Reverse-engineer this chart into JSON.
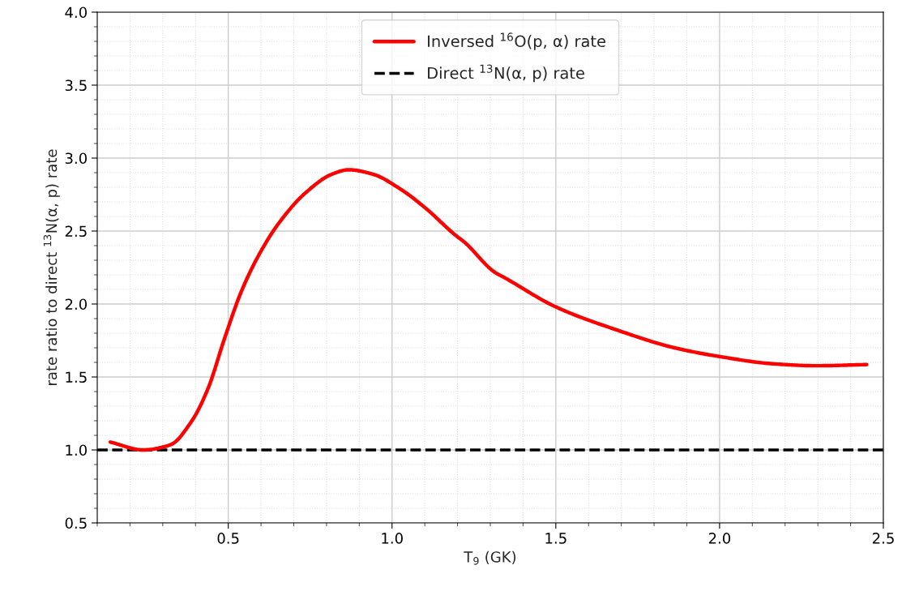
{
  "chart_data": {
    "type": "line",
    "xlabel": "T$_{9}$ (GK)",
    "ylabel": "rate ratio to direct $^{13}$N(α, p) rate",
    "series": [
      {
        "name": "Inversed $^{16}$O(p, α) rate",
        "color": "#ff0000",
        "line_style": "solid",
        "x": [
          0.14,
          0.24,
          0.323,
          0.389,
          0.438,
          0.488,
          0.537,
          0.587,
          0.653,
          0.735,
          0.817,
          0.867,
          0.941,
          1.024,
          1.106,
          1.189,
          1.223,
          1.312,
          1.344,
          1.5,
          1.689,
          1.862,
          2.0,
          2.164,
          2.294,
          2.449
        ],
        "values": [
          1.054,
          1.0,
          1.035,
          1.2,
          1.42,
          1.76,
          2.07,
          2.31,
          2.55,
          2.76,
          2.89,
          2.92,
          2.89,
          2.79,
          2.65,
          2.48,
          2.42,
          2.22,
          2.18,
          1.98,
          1.82,
          1.7,
          1.64,
          1.59,
          1.577,
          1.585
        ]
      }
    ],
    "ref_lines": [
      {
        "axis": "y",
        "value": 1.0,
        "label": "Direct $^{13}$N(α, p) rate",
        "color": "#000000",
        "line_style": "dashed"
      }
    ],
    "xlim": [
      0.1,
      2.5
    ],
    "xticks": [
      0.5,
      {
        "value": 1,
        "label": "1.0"
      },
      1.5,
      {
        "value": 2,
        "label": "2.0"
      },
      2.5
    ],
    "ylim": [
      0.5,
      4.0
    ],
    "yticks": [
      0.5,
      {
        "value": 1,
        "label": "1.0"
      },
      1.5,
      {
        "value": 2,
        "label": "2.0"
      },
      2.5,
      {
        "value": 3,
        "label": "3.0"
      },
      3.5,
      {
        "value": 4,
        "label": "4.0"
      }
    ],
    "grid": true,
    "legend": "top",
    "marker": "none"
  }
}
